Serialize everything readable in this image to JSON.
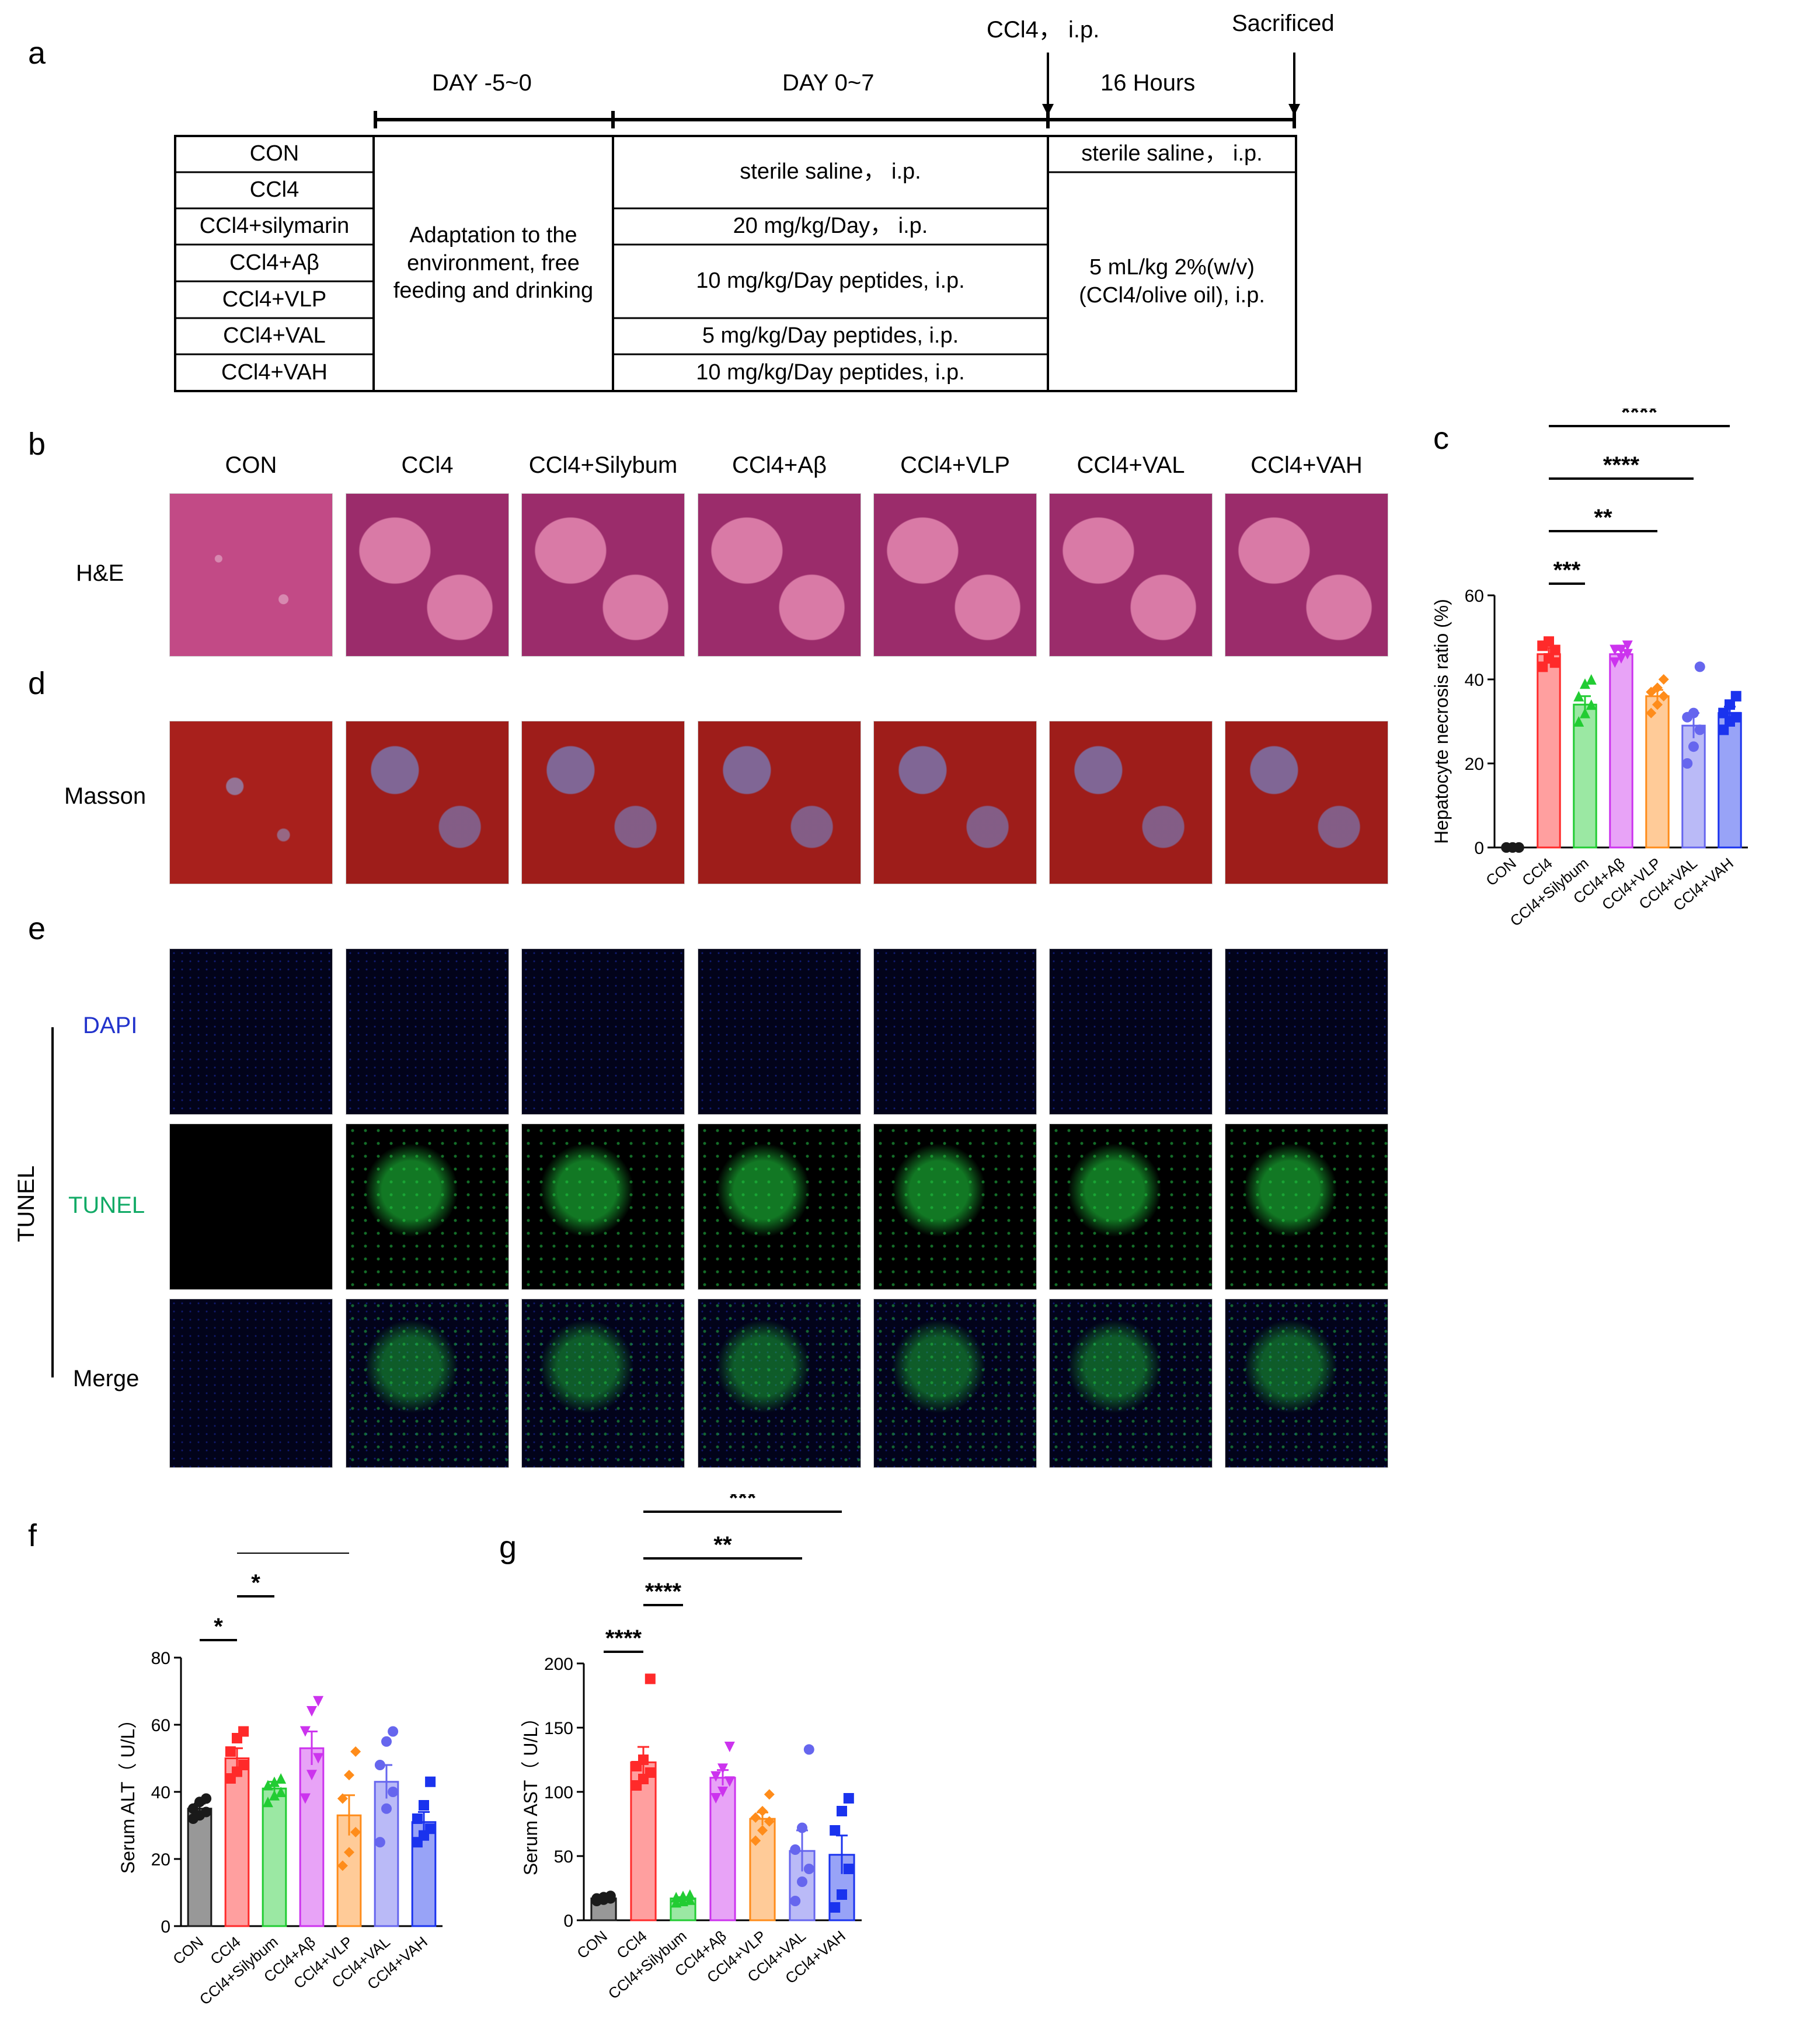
{
  "panels": {
    "a": "a",
    "b": "b",
    "c": "c",
    "d": "d",
    "e": "e",
    "f": "f",
    "g": "g"
  },
  "timeline": {
    "phase1": "DAY -5~0",
    "phase2": "DAY 0~7",
    "phase3": "16 Hours",
    "ccl4_ip": "CCl4， i.p.",
    "sacrificed": "Sacrificed"
  },
  "table": {
    "groups": [
      "CON",
      "CCl4",
      "CCl4+silymarin",
      "CCl4+Aβ",
      "CCl4+VLP",
      "CCl4+VAL",
      "CCl4+VAH"
    ],
    "adaptation": "Adaptation to the environment, free feeding and drinking",
    "treatments": [
      "sterile saline， i.p.",
      "20 mg/kg/Day， i.p.",
      "10 mg/kg/Day peptides, i.p.",
      "5 mg/kg/Day peptides, i.p.",
      "10 mg/kg/Day peptides, i.p."
    ],
    "final_con": "sterile saline， i.p.",
    "final_ccl4": "5 mL/kg 2%(w/v)(CCl4/olive oil), i.p."
  },
  "histology": {
    "columns": [
      "CON",
      "CCl4",
      "CCl4+Silybum",
      "CCl4+Aβ",
      "CCl4+VLP",
      "CCl4+VAL",
      "CCl4+VAH"
    ],
    "row_he": "H&E",
    "row_masson": "Masson",
    "row_dapi": "DAPI",
    "row_tunel": "TUNEL",
    "row_merge": "Merge",
    "tunel_group": "TUNEL"
  },
  "colors": {
    "CON": "#1a1a1a",
    "CCl4": "#ff2a2a",
    "Silybum": "#22cc33",
    "Ab": "#cc33ee",
    "VLP": "#ff8c1a",
    "VAL": "#6666ee",
    "VAH": "#1a33ee",
    "dapi_label": "#2233cc",
    "tunel_label": "#11aa66"
  },
  "chart_data": [
    {
      "panel": "c",
      "type": "bar",
      "ylabel": "Hepatocyte necrosis ratio (%)",
      "categories": [
        "CON",
        "CCl4",
        "CCl4+Silybum",
        "CCl4+Aβ",
        "CCl4+VLP",
        "CCl4+VAL",
        "CCl4+VAH"
      ],
      "values": [
        0,
        46,
        34,
        46,
        36,
        29,
        32
      ],
      "sem": [
        0.3,
        1.5,
        2,
        1,
        1.5,
        3,
        1.5
      ],
      "points": [
        [
          0,
          0,
          0,
          0,
          0,
          0
        ],
        [
          43,
          45,
          47,
          48,
          49,
          44
        ],
        [
          30,
          32,
          34,
          36,
          39,
          40
        ],
        [
          44,
          45,
          46,
          47,
          47,
          48
        ],
        [
          32,
          34,
          36,
          37,
          38,
          40
        ],
        [
          20,
          24,
          28,
          31,
          32,
          43
        ],
        [
          28,
          30,
          31,
          32,
          34,
          36
        ]
      ],
      "ylim": [
        0,
        60
      ],
      "yticks": [
        0,
        20,
        40,
        60
      ],
      "significance": [
        {
          "from": 1,
          "to": 2,
          "label": "***"
        },
        {
          "from": 1,
          "to": 4,
          "label": "**"
        },
        {
          "from": 1,
          "to": 5,
          "label": "****"
        },
        {
          "from": 1,
          "to": 6,
          "label": "****"
        }
      ]
    },
    {
      "panel": "f",
      "type": "bar",
      "ylabel": "Serum ALT（ U/L）",
      "categories": [
        "CON",
        "CCl4",
        "CCl4+Silybum",
        "CCl4+Aβ",
        "CCl4+VLP",
        "CCl4+VAL",
        "CCl4+VAH"
      ],
      "values": [
        35,
        50,
        41,
        53,
        33,
        43,
        31
      ],
      "sem": [
        1.5,
        3,
        2,
        5,
        6,
        5,
        3
      ],
      "points": [
        [
          32,
          33,
          34,
          35,
          37,
          38
        ],
        [
          44,
          46,
          48,
          52,
          56,
          58
        ],
        [
          37,
          39,
          40,
          42,
          43,
          44
        ],
        [
          38,
          45,
          50,
          58,
          64,
          67
        ],
        [
          18,
          22,
          28,
          38,
          45,
          52
        ],
        [
          25,
          35,
          40,
          48,
          55,
          58
        ],
        [
          25,
          27,
          29,
          32,
          36,
          43
        ]
      ],
      "ylim": [
        0,
        80
      ],
      "yticks": [
        0,
        20,
        40,
        60,
        80
      ],
      "significance": [
        {
          "from": 0,
          "to": 1,
          "label": "*"
        },
        {
          "from": 1,
          "to": 2,
          "label": "*"
        },
        {
          "from": 1,
          "to": 4,
          "label": "*"
        },
        {
          "from": 1,
          "to": 6,
          "label": "*"
        }
      ]
    },
    {
      "panel": "g",
      "type": "bar",
      "ylabel": "Serum AST（ U/L）",
      "categories": [
        "CON",
        "CCl4",
        "CCl4+Silybum",
        "CCl4+Aβ",
        "CCl4+VLP",
        "CCl4+VAL",
        "CCl4+VAH"
      ],
      "values": [
        17,
        123,
        17,
        111,
        79,
        54,
        51
      ],
      "sem": [
        1,
        12,
        1,
        6,
        5,
        16,
        15
      ],
      "points": [
        [
          15,
          16,
          17,
          17,
          18,
          19
        ],
        [
          105,
          110,
          115,
          120,
          125,
          188
        ],
        [
          14,
          15,
          16,
          18,
          19,
          20
        ],
        [
          95,
          100,
          108,
          112,
          118,
          135
        ],
        [
          62,
          70,
          77,
          80,
          85,
          98
        ],
        [
          15,
          30,
          40,
          55,
          72,
          133
        ],
        [
          10,
          20,
          40,
          70,
          85,
          95
        ]
      ],
      "ylim": [
        0,
        200
      ],
      "yticks": [
        0,
        50,
        100,
        150,
        200
      ],
      "significance": [
        {
          "from": 0,
          "to": 1,
          "label": "****"
        },
        {
          "from": 1,
          "to": 2,
          "label": "****"
        },
        {
          "from": 1,
          "to": 5,
          "label": "**"
        },
        {
          "from": 1,
          "to": 6,
          "label": "***"
        }
      ]
    }
  ]
}
